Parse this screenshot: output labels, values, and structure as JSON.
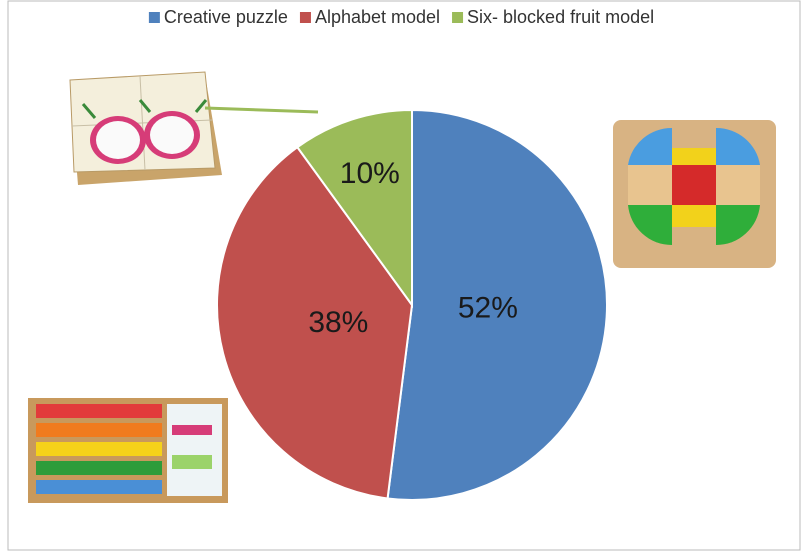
{
  "chart_data": {
    "type": "pie",
    "categories": [
      "Creative puzzle",
      "Alphabet model",
      "Six- blocked fruit model"
    ],
    "values": [
      52,
      38,
      10
    ],
    "value_labels": [
      "52%",
      "38%",
      "10%"
    ],
    "colors": [
      "#4f81bd",
      "#c0504d",
      "#9bbb59"
    ],
    "legend": "top"
  }
}
